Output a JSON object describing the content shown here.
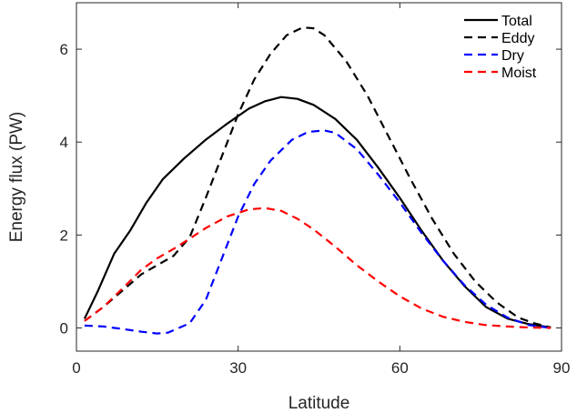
{
  "chart_data": {
    "type": "line",
    "title": "",
    "xlabel": "Latitude",
    "ylabel": "Energy flux (PW)",
    "xlim": [
      0,
      90
    ],
    "ylim": [
      -0.5,
      7
    ],
    "xticks": [
      0,
      30,
      60,
      90
    ],
    "yticks": [
      0,
      2,
      4,
      6
    ],
    "xtick_labels": [
      "0",
      "30",
      "60",
      "90"
    ],
    "ytick_labels": [
      "0",
      "2",
      "4",
      "6"
    ],
    "grid": false,
    "legend_position": "top-right",
    "series": [
      {
        "name": "Total",
        "color": "#000000",
        "style": "solid",
        "x": [
          1.5,
          4,
          7,
          10,
          13,
          16,
          20,
          24,
          28,
          32,
          35,
          38,
          41,
          44,
          48,
          52,
          56,
          60,
          64,
          68,
          72,
          76,
          80,
          84,
          88
        ],
        "y": [
          0.2,
          0.8,
          1.6,
          2.1,
          2.7,
          3.2,
          3.65,
          4.05,
          4.4,
          4.72,
          4.88,
          4.97,
          4.93,
          4.8,
          4.5,
          4.05,
          3.45,
          2.8,
          2.1,
          1.45,
          0.9,
          0.45,
          0.2,
          0.08,
          0.01
        ]
      },
      {
        "name": "Eddy",
        "color": "#000000",
        "style": "dashed",
        "x": [
          1.5,
          5,
          9,
          12,
          15,
          18,
          21,
          24,
          27,
          30,
          33,
          36,
          39,
          42,
          44,
          46,
          50,
          54,
          58,
          62,
          66,
          70,
          74,
          78,
          82,
          85,
          88
        ],
        "y": [
          0.15,
          0.45,
          0.85,
          1.15,
          1.35,
          1.55,
          1.95,
          2.8,
          3.7,
          4.6,
          5.35,
          5.9,
          6.3,
          6.47,
          6.45,
          6.3,
          5.75,
          5.0,
          4.1,
          3.2,
          2.35,
          1.6,
          1.0,
          0.55,
          0.22,
          0.1,
          0.01
        ]
      },
      {
        "name": "Dry",
        "color": "#0000ff",
        "style": "dashed",
        "x": [
          1.5,
          5,
          9,
          12,
          15,
          17,
          19,
          21,
          24,
          27,
          30,
          33,
          36,
          40,
          43,
          46,
          48,
          52,
          56,
          60,
          64,
          68,
          72,
          76,
          80,
          84,
          88
        ],
        "y": [
          0.05,
          0.03,
          -0.03,
          -0.08,
          -0.12,
          -0.1,
          0.0,
          0.1,
          0.6,
          1.5,
          2.4,
          3.1,
          3.6,
          4.05,
          4.22,
          4.25,
          4.2,
          3.85,
          3.3,
          2.7,
          2.05,
          1.45,
          0.92,
          0.5,
          0.22,
          0.06,
          0.0
        ]
      },
      {
        "name": "Moist",
        "color": "#ff0000",
        "style": "dashed",
        "x": [
          1.5,
          5,
          9,
          12,
          15,
          18,
          21,
          24,
          28,
          32,
          35,
          38,
          41,
          44,
          48,
          52,
          56,
          60,
          64,
          68,
          72,
          76,
          80,
          84,
          88
        ],
        "y": [
          0.15,
          0.45,
          0.9,
          1.25,
          1.5,
          1.7,
          1.92,
          2.15,
          2.4,
          2.55,
          2.58,
          2.52,
          2.35,
          2.12,
          1.75,
          1.35,
          1.0,
          0.68,
          0.42,
          0.24,
          0.13,
          0.06,
          0.03,
          0.01,
          0.0
        ]
      }
    ]
  }
}
